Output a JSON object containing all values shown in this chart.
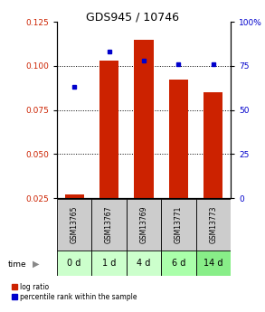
{
  "title": "GDS945 / 10746",
  "categories": [
    "GSM13765",
    "GSM13767",
    "GSM13769",
    "GSM13771",
    "GSM13773"
  ],
  "time_labels": [
    "0 d",
    "1 d",
    "4 d",
    "6 d",
    "14 d"
  ],
  "log_ratio": [
    0.027,
    0.103,
    0.115,
    0.092,
    0.085
  ],
  "percentile_rank": [
    63,
    83,
    78,
    76,
    76
  ],
  "left_ylim": [
    0.025,
    0.125
  ],
  "right_ylim": [
    0,
    100
  ],
  "left_yticks": [
    0.025,
    0.05,
    0.075,
    0.1,
    0.125
  ],
  "right_yticks": [
    0,
    25,
    50,
    75,
    100
  ],
  "right_yticklabels": [
    "0",
    "25",
    "50",
    "75",
    "100%"
  ],
  "bar_color": "#cc2200",
  "dot_color": "#0000cc",
  "sample_bg": "#cccccc",
  "time_bg_colors": [
    "#ccffcc",
    "#ccffcc",
    "#ccffcc",
    "#aaffaa",
    "#88ee88"
  ],
  "bar_width": 0.55,
  "title_fontsize": 9,
  "tick_fontsize": 6.5,
  "sample_fontsize": 5.5,
  "time_fontsize": 7
}
